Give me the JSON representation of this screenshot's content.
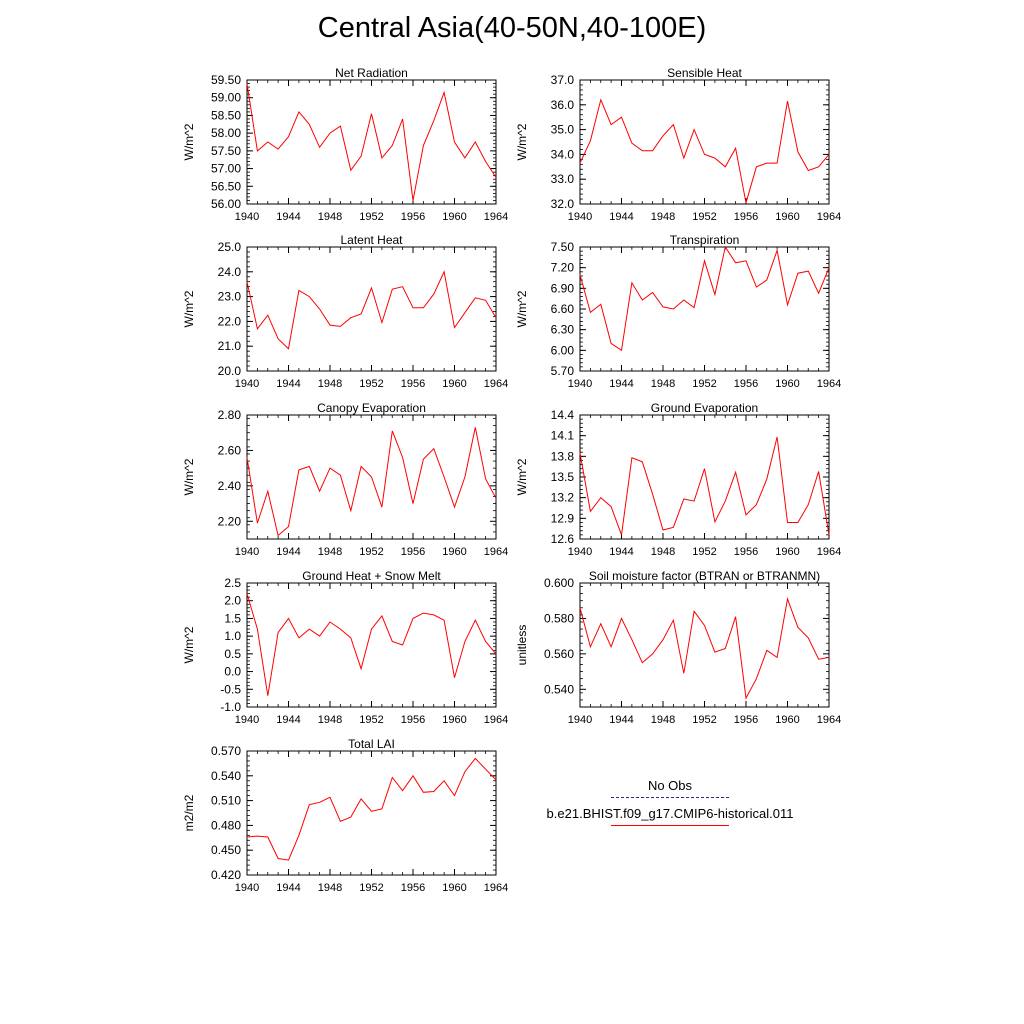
{
  "title": "Central Asia(40-50N,40-100E)",
  "legend": {
    "obs_label": "No Obs",
    "obs_color": "#2a2a8a",
    "model_label": "b.e21.BHIST.f09_g17.CMIP6-historical.011",
    "model_color": "#ff0000"
  },
  "chart_data": [
    {
      "type": "line",
      "title": "Net Radiation",
      "ylabel": "W/m^2",
      "xlim": [
        1940,
        1964
      ],
      "ylim": [
        56.0,
        59.5
      ],
      "yticks": [
        56.0,
        56.5,
        57.0,
        57.5,
        58.0,
        58.5,
        59.0,
        59.5
      ],
      "ytick_labels": [
        "56.00",
        "56.50",
        "57.00",
        "57.50",
        "58.00",
        "58.50",
        "59.00",
        "59.50"
      ],
      "xticks": [
        1940,
        1944,
        1948,
        1952,
        1956,
        1960,
        1964
      ],
      "x": [
        1940,
        1941,
        1942,
        1943,
        1944,
        1945,
        1946,
        1947,
        1948,
        1949,
        1950,
        1951,
        1952,
        1953,
        1954,
        1955,
        1956,
        1957,
        1958,
        1959,
        1960,
        1961,
        1962,
        1963,
        1964
      ],
      "series": [
        {
          "values": [
            59.4,
            57.5,
            57.75,
            57.55,
            57.9,
            58.6,
            58.25,
            57.6,
            58.0,
            58.2,
            56.95,
            57.35,
            58.55,
            57.3,
            57.65,
            58.4,
            56.1,
            57.65,
            58.35,
            59.15,
            57.75,
            57.3,
            57.75,
            57.2,
            56.75
          ]
        }
      ]
    },
    {
      "type": "line",
      "title": "Sensible Heat",
      "ylabel": "W/m^2",
      "xlim": [
        1940,
        1964
      ],
      "ylim": [
        32.0,
        37.0
      ],
      "yticks": [
        32.0,
        33.0,
        34.0,
        35.0,
        36.0,
        37.0
      ],
      "ytick_labels": [
        "32.0",
        "33.0",
        "34.0",
        "35.0",
        "36.0",
        "37.0"
      ],
      "xticks": [
        1940,
        1944,
        1948,
        1952,
        1956,
        1960,
        1964
      ],
      "x": [
        1940,
        1941,
        1942,
        1943,
        1944,
        1945,
        1946,
        1947,
        1948,
        1949,
        1950,
        1951,
        1952,
        1953,
        1954,
        1955,
        1956,
        1957,
        1958,
        1959,
        1960,
        1961,
        1962,
        1963,
        1964
      ],
      "series": [
        {
          "values": [
            33.65,
            34.55,
            36.2,
            35.2,
            35.5,
            34.45,
            34.15,
            34.15,
            34.75,
            35.2,
            33.85,
            35.0,
            34.0,
            33.85,
            33.5,
            34.25,
            32.05,
            33.5,
            33.65,
            33.65,
            36.15,
            34.1,
            33.35,
            33.5,
            34.0
          ]
        }
      ]
    },
    {
      "type": "line",
      "title": "Latent Heat",
      "ylabel": "W/m^2",
      "xlim": [
        1940,
        1964
      ],
      "ylim": [
        20.0,
        25.0
      ],
      "yticks": [
        20.0,
        21.0,
        22.0,
        23.0,
        24.0,
        25.0
      ],
      "ytick_labels": [
        "20.0",
        "21.0",
        "22.0",
        "23.0",
        "24.0",
        "25.0"
      ],
      "xticks": [
        1940,
        1944,
        1948,
        1952,
        1956,
        1960,
        1964
      ],
      "x": [
        1940,
        1941,
        1942,
        1943,
        1944,
        1945,
        1946,
        1947,
        1948,
        1949,
        1950,
        1951,
        1952,
        1953,
        1954,
        1955,
        1956,
        1957,
        1958,
        1959,
        1960,
        1961,
        1962,
        1963,
        1964
      ],
      "series": [
        {
          "values": [
            23.6,
            21.7,
            22.25,
            21.3,
            20.9,
            23.25,
            23.0,
            22.5,
            21.85,
            21.8,
            22.15,
            22.3,
            23.35,
            21.95,
            23.3,
            23.4,
            22.55,
            22.55,
            23.1,
            24.0,
            21.75,
            22.35,
            22.95,
            22.85,
            22.15
          ]
        }
      ]
    },
    {
      "type": "line",
      "title": "Transpiration",
      "ylabel": "W/m^2",
      "xlim": [
        1940,
        1964
      ],
      "ylim": [
        5.7,
        7.5
      ],
      "yticks": [
        5.7,
        6.0,
        6.3,
        6.6,
        6.9,
        7.2,
        7.5
      ],
      "ytick_labels": [
        "5.70",
        "6.00",
        "6.30",
        "6.60",
        "6.90",
        "7.20",
        "7.50"
      ],
      "xticks": [
        1940,
        1944,
        1948,
        1952,
        1956,
        1960,
        1964
      ],
      "x": [
        1940,
        1941,
        1942,
        1943,
        1944,
        1945,
        1946,
        1947,
        1948,
        1949,
        1950,
        1951,
        1952,
        1953,
        1954,
        1955,
        1956,
        1957,
        1958,
        1959,
        1960,
        1961,
        1962,
        1963,
        1964
      ],
      "series": [
        {
          "values": [
            7.1,
            6.55,
            6.67,
            6.1,
            6.0,
            6.98,
            6.73,
            6.84,
            6.63,
            6.6,
            6.73,
            6.62,
            7.3,
            6.81,
            7.5,
            7.27,
            7.3,
            6.92,
            7.02,
            7.45,
            6.66,
            7.12,
            7.15,
            6.83,
            7.2
          ]
        }
      ]
    },
    {
      "type": "line",
      "title": "Canopy Evaporation",
      "ylabel": "W/m^2",
      "xlim": [
        1940,
        1964
      ],
      "ylim": [
        2.1,
        2.8
      ],
      "yticks": [
        2.2,
        2.4,
        2.6,
        2.8
      ],
      "ytick_labels": [
        "2.20",
        "2.40",
        "2.60",
        "2.80"
      ],
      "xticks": [
        1940,
        1944,
        1948,
        1952,
        1956,
        1960,
        1964
      ],
      "x": [
        1940,
        1941,
        1942,
        1943,
        1944,
        1945,
        1946,
        1947,
        1948,
        1949,
        1950,
        1951,
        1952,
        1953,
        1954,
        1955,
        1956,
        1957,
        1958,
        1959,
        1960,
        1961,
        1962,
        1963,
        1964
      ],
      "series": [
        {
          "values": [
            2.56,
            2.19,
            2.37,
            2.12,
            2.17,
            2.49,
            2.51,
            2.37,
            2.5,
            2.46,
            2.26,
            2.51,
            2.45,
            2.28,
            2.71,
            2.56,
            2.3,
            2.55,
            2.61,
            2.45,
            2.28,
            2.45,
            2.73,
            2.44,
            2.33
          ]
        }
      ]
    },
    {
      "type": "line",
      "title": "Ground Evaporation",
      "ylabel": "W/m^2",
      "xlim": [
        1940,
        1964
      ],
      "ylim": [
        12.6,
        14.4
      ],
      "yticks": [
        12.6,
        12.9,
        13.2,
        13.5,
        13.8,
        14.1,
        14.4
      ],
      "ytick_labels": [
        "12.6",
        "12.9",
        "13.2",
        "13.5",
        "13.8",
        "14.1",
        "14.4"
      ],
      "xticks": [
        1940,
        1944,
        1948,
        1952,
        1956,
        1960,
        1964
      ],
      "x": [
        1940,
        1941,
        1942,
        1943,
        1944,
        1945,
        1946,
        1947,
        1948,
        1949,
        1950,
        1951,
        1952,
        1953,
        1954,
        1955,
        1956,
        1957,
        1958,
        1959,
        1960,
        1961,
        1962,
        1963,
        1964
      ],
      "series": [
        {
          "values": [
            13.85,
            13.0,
            13.2,
            13.07,
            12.66,
            13.78,
            13.72,
            13.25,
            12.73,
            12.77,
            13.18,
            13.15,
            13.62,
            12.85,
            13.15,
            13.57,
            12.95,
            13.1,
            13.47,
            14.08,
            12.84,
            12.84,
            13.1,
            13.58,
            12.66
          ]
        }
      ]
    },
    {
      "type": "line",
      "title": "Ground Heat + Snow Melt",
      "ylabel": "W/m^2",
      "xlim": [
        1940,
        1964
      ],
      "ylim": [
        -1.0,
        2.5
      ],
      "yticks": [
        -1.0,
        -0.5,
        0.0,
        0.5,
        1.0,
        1.5,
        2.0,
        2.5
      ],
      "ytick_labels": [
        "-1.0",
        "-0.5",
        "0.0",
        "0.5",
        "1.0",
        "1.5",
        "2.0",
        "2.5"
      ],
      "xticks": [
        1940,
        1944,
        1948,
        1952,
        1956,
        1960,
        1964
      ],
      "x": [
        1940,
        1941,
        1942,
        1943,
        1944,
        1945,
        1946,
        1947,
        1948,
        1949,
        1950,
        1951,
        1952,
        1953,
        1954,
        1955,
        1956,
        1957,
        1958,
        1959,
        1960,
        1961,
        1962,
        1963,
        1964
      ],
      "series": [
        {
          "values": [
            2.2,
            1.2,
            -0.68,
            1.1,
            1.5,
            0.95,
            1.2,
            1.0,
            1.4,
            1.2,
            0.95,
            0.08,
            1.2,
            1.57,
            0.85,
            0.75,
            1.5,
            1.65,
            1.6,
            1.45,
            -0.17,
            0.85,
            1.45,
            0.85,
            0.5
          ]
        }
      ]
    },
    {
      "type": "line",
      "title": "Soil moisture factor (BTRAN or BTRANMN)",
      "ylabel": "unitless",
      "xlim": [
        1940,
        1964
      ],
      "ylim": [
        0.53,
        0.6
      ],
      "yticks": [
        0.54,
        0.56,
        0.58,
        0.6
      ],
      "ytick_labels": [
        "0.540",
        "0.560",
        "0.580",
        "0.600"
      ],
      "xticks": [
        1940,
        1944,
        1948,
        1952,
        1956,
        1960,
        1964
      ],
      "x": [
        1940,
        1941,
        1942,
        1943,
        1944,
        1945,
        1946,
        1947,
        1948,
        1949,
        1950,
        1951,
        1952,
        1953,
        1954,
        1955,
        1956,
        1957,
        1958,
        1959,
        1960,
        1961,
        1962,
        1963,
        1964
      ],
      "series": [
        {
          "values": [
            0.586,
            0.564,
            0.577,
            0.564,
            0.58,
            0.568,
            0.555,
            0.56,
            0.568,
            0.579,
            0.549,
            0.584,
            0.576,
            0.561,
            0.563,
            0.581,
            0.535,
            0.546,
            0.562,
            0.558,
            0.591,
            0.575,
            0.569,
            0.557,
            0.558
          ]
        }
      ]
    },
    {
      "type": "line",
      "title": "Total LAI",
      "ylabel": "m2/m2",
      "xlim": [
        1940,
        1964
      ],
      "ylim": [
        0.42,
        0.57
      ],
      "yticks": [
        0.42,
        0.45,
        0.48,
        0.51,
        0.54,
        0.57
      ],
      "ytick_labels": [
        "0.420",
        "0.450",
        "0.480",
        "0.510",
        "0.540",
        "0.570"
      ],
      "xticks": [
        1940,
        1944,
        1948,
        1952,
        1956,
        1960,
        1964
      ],
      "x": [
        1940,
        1941,
        1942,
        1943,
        1944,
        1945,
        1946,
        1947,
        1948,
        1949,
        1950,
        1951,
        1952,
        1953,
        1954,
        1955,
        1956,
        1957,
        1958,
        1959,
        1960,
        1961,
        1962,
        1963,
        1964
      ],
      "series": [
        {
          "values": [
            0.466,
            0.467,
            0.466,
            0.44,
            0.438,
            0.468,
            0.505,
            0.508,
            0.514,
            0.485,
            0.49,
            0.512,
            0.497,
            0.5,
            0.538,
            0.522,
            0.54,
            0.52,
            0.521,
            0.534,
            0.516,
            0.545,
            0.561,
            0.548,
            0.535
          ]
        }
      ]
    }
  ]
}
